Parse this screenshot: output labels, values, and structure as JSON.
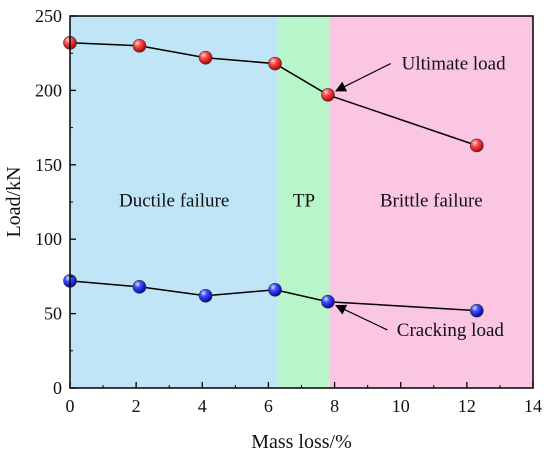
{
  "chart_data": {
    "type": "line",
    "xlabel": "Mass loss/%",
    "ylabel": "Load/kN",
    "xlim": [
      0,
      14
    ],
    "ylim": [
      0,
      250
    ],
    "x_ticks": [
      0,
      2,
      4,
      6,
      8,
      10,
      12,
      14
    ],
    "y_ticks": [
      0,
      50,
      100,
      150,
      200,
      250
    ],
    "grid": false,
    "series": [
      {
        "name": "Ultimate load",
        "color": "#ff0000",
        "x": [
          0,
          2.1,
          4.1,
          6.2,
          7.8,
          12.3
        ],
        "y": [
          232,
          230,
          222,
          218,
          197,
          163
        ]
      },
      {
        "name": "Cracking load",
        "color": "#0000ff",
        "x": [
          0,
          2.1,
          4.1,
          6.2,
          7.8,
          12.3
        ],
        "y": [
          72,
          68,
          62,
          66,
          58,
          52
        ]
      }
    ],
    "regions": [
      {
        "label": "Ductile failure",
        "x_start": 0,
        "x_end": 6.3,
        "color": "#bfe5f7"
      },
      {
        "label": "TP",
        "x_start": 6.3,
        "x_end": 7.85,
        "color": "#b8f5c8"
      },
      {
        "label": "Brittle failure",
        "x_start": 7.85,
        "x_end": 14,
        "color": "#fbc6e2"
      }
    ],
    "annotations": [
      {
        "text": "Ultimate load",
        "series": "Ultimate load",
        "target": [
          7.8,
          197
        ],
        "text_pos": [
          11.6,
          214
        ]
      },
      {
        "text": "Cracking load",
        "series": "Cracking load",
        "target": [
          7.8,
          58
        ],
        "text_pos": [
          11.5,
          35
        ]
      }
    ]
  }
}
